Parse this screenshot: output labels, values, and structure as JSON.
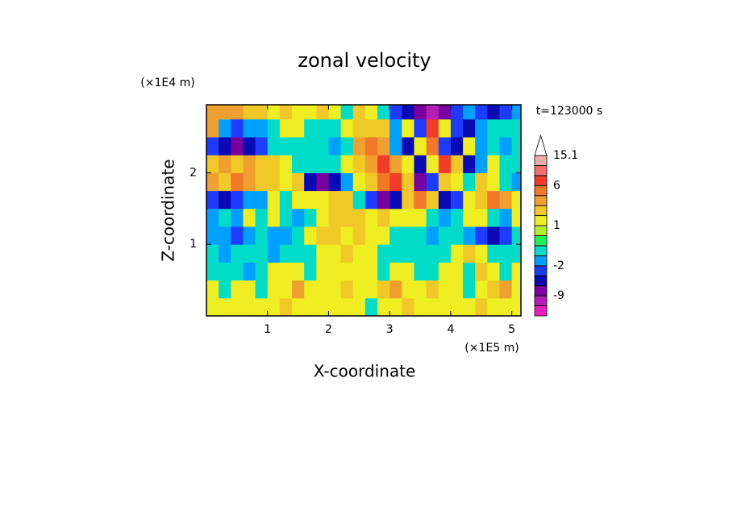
{
  "chart_data": {
    "type": "contour",
    "title": "zonal velocity",
    "time_label": "t=123000 s",
    "x_label": "X-coordinate",
    "y_label": "Z-coordinate",
    "x_unit": "(×1E5 m)",
    "y_unit": "(×1E4 m)",
    "xlim": [
      0,
      5.15
    ],
    "xticks": [
      1,
      2,
      3,
      4,
      5
    ],
    "ylim": [
      0,
      2.95
    ],
    "yticks": [
      1,
      2
    ],
    "x": [
      0.1,
      0.3,
      0.5,
      0.7,
      0.9,
      1.1,
      1.3,
      1.5,
      1.7,
      1.9,
      2.1,
      2.3,
      2.5,
      2.7,
      2.9,
      3.1,
      3.3,
      3.5,
      3.7,
      3.9,
      4.1,
      4.3,
      4.5,
      4.7,
      4.9,
      5.1
    ],
    "y": [
      0.125,
      0.375,
      0.625,
      0.875,
      1.125,
      1.375,
      1.625,
      1.875,
      2.125,
      2.375,
      2.625,
      2.875
    ],
    "z": [
      [
        1.5,
        1.5,
        1.5,
        1.5,
        1.5,
        1.5,
        2.5,
        1.5,
        1.5,
        1.5,
        1.5,
        1.5,
        1.5,
        -0.5,
        1.5,
        1.5,
        2.5,
        1.5,
        1.5,
        1.5,
        1.5,
        1.5,
        2.5,
        1.5,
        1.5,
        1.5
      ],
      [
        1.5,
        -0.5,
        1.5,
        1.5,
        -0.5,
        1.5,
        1.5,
        3.5,
        1.5,
        1.5,
        1.5,
        2.5,
        1.5,
        1.5,
        2.5,
        3.5,
        1.5,
        1.5,
        2.5,
        1.5,
        1.5,
        -0.5,
        1.5,
        2.5,
        3.5,
        1.5
      ],
      [
        -0.5,
        -0.5,
        -0.5,
        -1.5,
        -0.5,
        1.5,
        1.5,
        1.5,
        -0.5,
        1.5,
        1.5,
        1.5,
        1.5,
        1.5,
        -0.5,
        1.5,
        1.5,
        -0.5,
        -0.5,
        1.5,
        1.5,
        -0.5,
        2.5,
        1.5,
        -0.5,
        1.5
      ],
      [
        -0.5,
        -1.5,
        -0.5,
        -0.5,
        -0.5,
        -1.5,
        -0.5,
        -0.5,
        -0.5,
        1.5,
        1.5,
        2.5,
        1.5,
        1.5,
        -0.5,
        -0.5,
        -0.5,
        -0.5,
        -0.5,
        -0.5,
        1.5,
        2.5,
        1.5,
        -0.5,
        -0.5,
        -0.5
      ],
      [
        -1.5,
        -1.5,
        -2.5,
        -1.5,
        -0.5,
        -1.5,
        -1.5,
        -0.5,
        1.5,
        2.5,
        2.5,
        1.5,
        2.5,
        1.5,
        1.5,
        -0.5,
        -0.5,
        -0.5,
        -1.5,
        -0.5,
        -0.5,
        -1.5,
        -3,
        -5,
        -3,
        -0.5
      ],
      [
        -1.5,
        -0.5,
        -1.5,
        1.5,
        -0.5,
        1.5,
        -0.5,
        -1.5,
        -0.5,
        1.5,
        2.5,
        2.5,
        2.5,
        1.5,
        2.5,
        1.5,
        1.5,
        1.5,
        -0.5,
        -1.5,
        -0.5,
        1.5,
        1.5,
        -0.5,
        -1.5,
        1.5
      ],
      [
        -3,
        -5,
        -3,
        -1.5,
        -1.5,
        1.5,
        -0.5,
        1.5,
        1.5,
        1.5,
        2.5,
        2.5,
        -0.5,
        -3,
        -7,
        -5,
        2.5,
        5,
        2.5,
        -5,
        -3,
        1.5,
        2.5,
        5,
        3.5,
        1.5
      ],
      [
        3.5,
        2.5,
        5,
        3.5,
        2.5,
        2.5,
        1.5,
        2.5,
        -5,
        -7,
        -5,
        -1.5,
        1.5,
        2.5,
        5,
        7,
        2.5,
        -7,
        -3,
        2.5,
        1.5,
        -0.5,
        2.5,
        1.5,
        -0.5,
        -1.5
      ],
      [
        2.5,
        3.5,
        2.5,
        3.5,
        2.5,
        2.5,
        1.5,
        -0.5,
        -0.5,
        -0.5,
        -0.5,
        1.5,
        2.5,
        3.5,
        7,
        3.5,
        1.5,
        -5,
        1.5,
        7,
        2.5,
        -5,
        -1.5,
        1.5,
        -0.5,
        -0.5
      ],
      [
        -3,
        -5,
        -7,
        -5,
        -3,
        -0.5,
        -0.5,
        -0.5,
        -0.5,
        -0.5,
        -1.5,
        -0.5,
        3.5,
        5,
        3.5,
        -1.5,
        -5,
        1.5,
        5,
        -3,
        -5,
        1.5,
        -1.5,
        -0.5,
        -1.5,
        -0.5
      ],
      [
        3.5,
        -1.5,
        -3,
        -1.5,
        -1.5,
        -0.5,
        1.5,
        1.5,
        -0.5,
        -0.5,
        -0.5,
        1.5,
        2.5,
        2.5,
        2.5,
        -1.5,
        1.5,
        -3,
        7,
        1.5,
        -3,
        -5,
        -1.5,
        -0.5,
        -0.5,
        -0.5
      ],
      [
        3.5,
        3.5,
        3.5,
        2.5,
        2.5,
        1.5,
        2.5,
        1.5,
        1.5,
        2.5,
        1.5,
        -0.5,
        2.5,
        1.5,
        -0.5,
        -3,
        -5,
        -7,
        -10,
        -7,
        -3,
        -1.5,
        -3,
        -5,
        -3,
        -1.5
      ]
    ],
    "levels": [
      -12,
      -9,
      -6,
      -4,
      -2,
      -1,
      0,
      0.5,
      1,
      2,
      3,
      4,
      6,
      9,
      12,
      15.1
    ],
    "colors": [
      "#f01ebe",
      "#b41eb4",
      "#7800a0",
      "#0a0ab4",
      "#1e3cff",
      "#00a0ff",
      "#00dcc8",
      "#22ee55",
      "#b4f032",
      "#eeee22",
      "#f0c828",
      "#f0a030",
      "#f07828",
      "#f03c28",
      "#f07070",
      "#f5aaaa",
      "#ffffff"
    ],
    "colorbar_labels": [
      15.1,
      6,
      1,
      -2,
      -9
    ]
  }
}
